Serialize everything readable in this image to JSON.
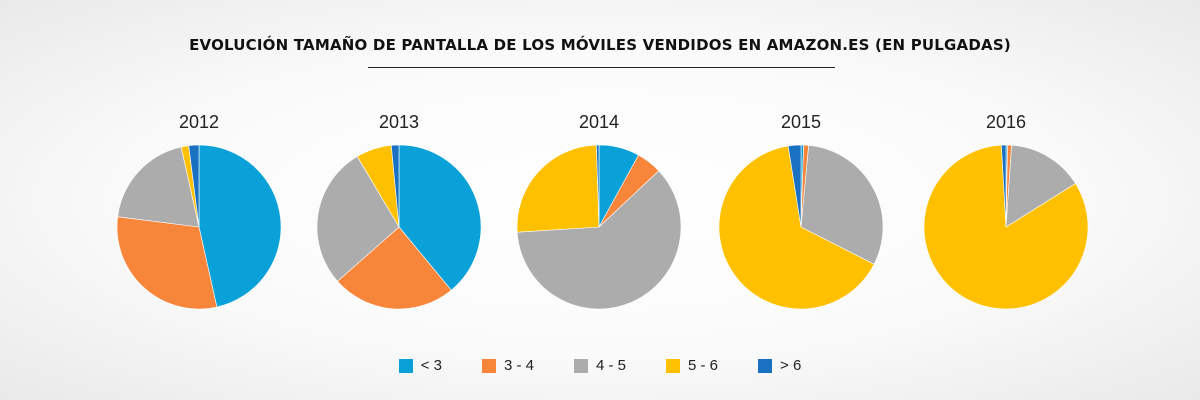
{
  "chart_data": {
    "type": "pie",
    "title": "EVOLUCIÓN TAMAÑO DE PANTALLA DE LOS MÓVILES VENDIDOS EN AMAZON.ES (EN PULGADAS)",
    "categories": [
      "< 3",
      "3 - 4",
      "4 - 5",
      "5 - 6",
      "> 6"
    ],
    "colors": [
      "#0aa1d9",
      "#f7853a",
      "#acacac",
      "#ffc000",
      "#1b71c1"
    ],
    "legend_position": "bottom",
    "pies": [
      {
        "year": "2012",
        "values": [
          46.5,
          30.5,
          19.5,
          1.5,
          2.0
        ]
      },
      {
        "year": "2013",
        "values": [
          39.0,
          24.5,
          28.0,
          7.0,
          1.5
        ]
      },
      {
        "year": "2014",
        "values": [
          8.0,
          5.0,
          61.0,
          25.5,
          0.5
        ]
      },
      {
        "year": "2015",
        "values": [
          0.5,
          1.0,
          31.0,
          65.0,
          2.5
        ]
      },
      {
        "year": "2016",
        "values": [
          0.3,
          0.8,
          15.0,
          83.0,
          0.9
        ]
      }
    ]
  }
}
